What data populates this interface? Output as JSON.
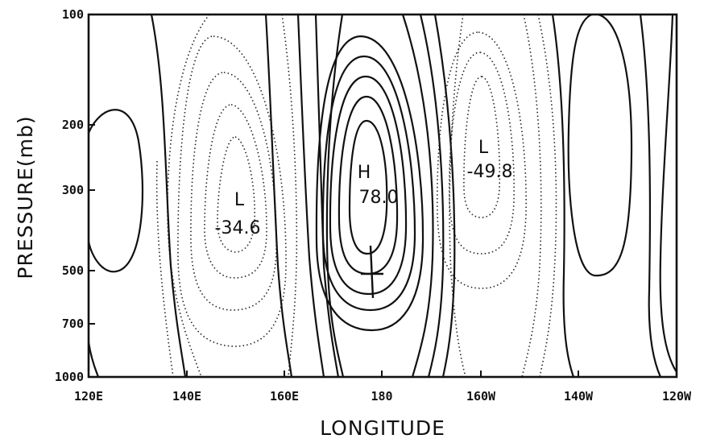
{
  "figure": {
    "xlabel": "LONGITUDE",
    "ylabel": "PRESSURE(mb)",
    "x_ticks": [
      "120E",
      "140E",
      "160E",
      "180",
      "160W",
      "140W",
      "120W"
    ],
    "y_ticks": [
      "100",
      "200",
      "300",
      "500",
      "700",
      "1000"
    ],
    "y_scale": "log-pressure",
    "contour_styles": {
      "positive": "solid",
      "negative": "dotted"
    },
    "centers": [
      {
        "type": "L",
        "value": "-34.6",
        "longitude": "150E",
        "pressure_mb": 350
      },
      {
        "type": "H",
        "value": "78.0",
        "longitude": "175E",
        "pressure_mb": 290
      },
      {
        "type": "L",
        "value": "-49.8",
        "longitude": "160W",
        "pressure_mb": 260
      }
    ]
  }
}
